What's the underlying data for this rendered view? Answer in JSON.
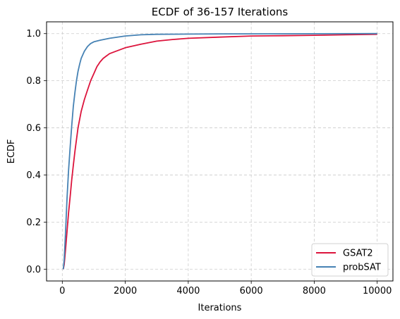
{
  "chart_data": {
    "type": "line",
    "title": "ECDF of 36-157 Iterations",
    "xlabel": "Iterations",
    "ylabel": "ECDF",
    "xlim": [
      -500,
      10500
    ],
    "ylim": [
      -0.05,
      1.05
    ],
    "xticks": [
      0,
      2000,
      4000,
      6000,
      8000,
      10000
    ],
    "yticks": [
      0.0,
      0.2,
      0.4,
      0.6,
      0.8,
      1.0
    ],
    "xtick_labels": [
      "0",
      "2000",
      "4000",
      "6000",
      "8000",
      "10000"
    ],
    "ytick_labels": [
      "0.0",
      "0.2",
      "0.4",
      "0.6",
      "0.8",
      "1.0"
    ],
    "grid": true,
    "legend_position": "lower-right",
    "series": [
      {
        "name": "GSAT2",
        "color": "#dc143c",
        "x": [
          30,
          60,
          100,
          150,
          200,
          250,
          300,
          350,
          400,
          450,
          500,
          600,
          700,
          800,
          900,
          1000,
          1100,
          1200,
          1300,
          1400,
          1500,
          1700,
          2000,
          2500,
          3000,
          3500,
          4000,
          5000,
          6000,
          7000,
          8000,
          9000,
          10000
        ],
        "y": [
          0.0,
          0.02,
          0.08,
          0.16,
          0.24,
          0.31,
          0.38,
          0.44,
          0.5,
          0.55,
          0.6,
          0.67,
          0.72,
          0.76,
          0.8,
          0.83,
          0.86,
          0.88,
          0.895,
          0.905,
          0.915,
          0.925,
          0.94,
          0.955,
          0.968,
          0.975,
          0.98,
          0.985,
          0.99,
          0.991,
          0.993,
          0.995,
          0.997
        ]
      },
      {
        "name": "probSAT",
        "color": "#4682b4",
        "x": [
          30,
          60,
          100,
          150,
          200,
          250,
          300,
          350,
          400,
          450,
          500,
          550,
          600,
          700,
          800,
          900,
          1000,
          1200,
          1500,
          2000,
          2500,
          3000,
          4000,
          5000,
          10000
        ],
        "y": [
          0.0,
          0.04,
          0.15,
          0.3,
          0.42,
          0.52,
          0.61,
          0.69,
          0.75,
          0.8,
          0.84,
          0.87,
          0.895,
          0.925,
          0.945,
          0.958,
          0.965,
          0.972,
          0.98,
          0.99,
          0.995,
          0.997,
          0.998,
          0.999,
          1.0
        ]
      }
    ]
  }
}
